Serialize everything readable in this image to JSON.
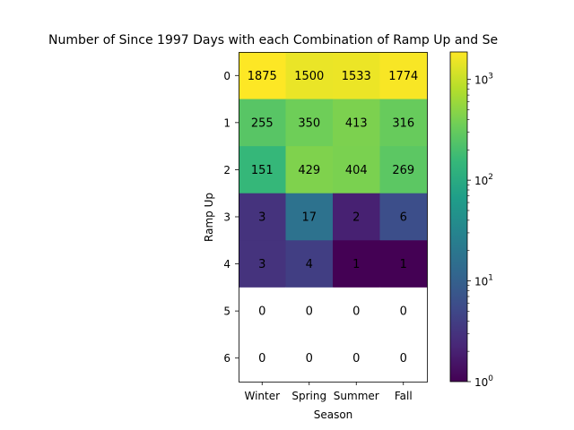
{
  "chart_data": {
    "type": "heatmap",
    "title": "Number of Since 1997 Days with each Combination of Ramp Up and Se",
    "xlabel": "Season",
    "ylabel": "Ramp Up",
    "x_categories": [
      "Winter",
      "Spring",
      "Summer",
      "Fall"
    ],
    "y_categories": [
      "0",
      "1",
      "2",
      "3",
      "4",
      "5",
      "6"
    ],
    "values": [
      [
        1875,
        1500,
        1533,
        1774
      ],
      [
        255,
        350,
        413,
        316
      ],
      [
        151,
        429,
        404,
        269
      ],
      [
        3,
        17,
        2,
        6
      ],
      [
        3,
        4,
        1,
        1
      ],
      [
        0,
        0,
        0,
        0
      ],
      [
        0,
        0,
        0,
        0
      ]
    ],
    "colorbar": {
      "scale": "log",
      "range": [
        1,
        1875
      ],
      "colormap": "viridis",
      "tick_labels": [
        {
          "value": 1,
          "base": "10",
          "exp": "0"
        },
        {
          "value": 10,
          "base": "10",
          "exp": "1"
        },
        {
          "value": 100,
          "base": "10",
          "exp": "2"
        },
        {
          "value": 1000,
          "base": "10",
          "exp": "3"
        }
      ]
    },
    "zero_color": "#ffffff"
  }
}
